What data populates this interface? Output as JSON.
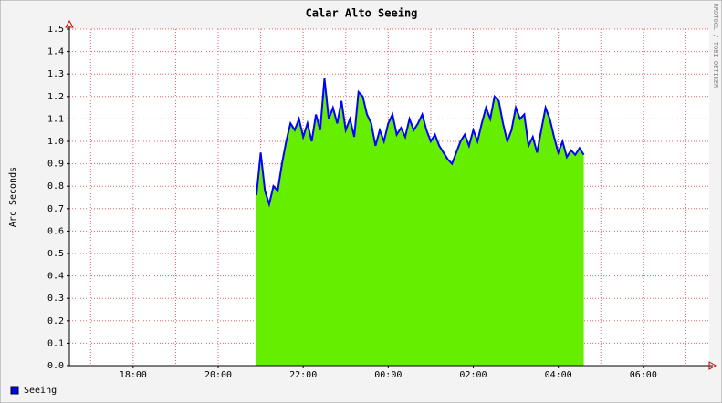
{
  "chart_data": {
    "type": "area",
    "title": "Calar Alto Seeing",
    "ylabel": "Arc Seconds",
    "side_text": "RRDTOOL / TOBI OETIKER",
    "xlim": [
      16.5,
      31.55
    ],
    "xticks": [
      {
        "value": 18,
        "label": "18:00"
      },
      {
        "value": 20,
        "label": "20:00"
      },
      {
        "value": 22,
        "label": "22:00"
      },
      {
        "value": 24,
        "label": "00:00"
      },
      {
        "value": 26,
        "label": "02:00"
      },
      {
        "value": 28,
        "label": "04:00"
      },
      {
        "value": 30,
        "label": "06:00"
      }
    ],
    "xgrid": [
      17,
      18,
      19,
      20,
      21,
      22,
      23,
      24,
      25,
      26,
      27,
      28,
      29,
      30,
      31
    ],
    "ylim": [
      0,
      1.5
    ],
    "yticks": [
      {
        "value": 0,
        "label": "0.0"
      },
      0.1,
      0.2,
      0.3,
      0.4,
      0.5,
      0.6,
      0.7,
      0.8,
      0.9,
      {
        "value": 1,
        "label": "1.0"
      },
      1.1,
      1.2,
      1.3,
      1.4,
      {
        "value": 1.5,
        "label": "1.5"
      }
    ],
    "grid": true,
    "x": [
      20.9,
      21.0,
      21.1,
      21.2,
      21.3,
      21.4,
      21.5,
      21.6,
      21.7,
      21.8,
      21.9,
      22.0,
      22.1,
      22.2,
      22.3,
      22.4,
      22.5,
      22.6,
      22.7,
      22.8,
      22.9,
      23.0,
      23.1,
      23.2,
      23.3,
      23.4,
      23.5,
      23.6,
      23.7,
      23.8,
      23.9,
      24.0,
      24.1,
      24.2,
      24.3,
      24.4,
      24.5,
      24.6,
      24.7,
      24.8,
      24.9,
      25.0,
      25.1,
      25.2,
      25.3,
      25.4,
      25.5,
      25.6,
      25.7,
      25.8,
      25.9,
      26.0,
      26.1,
      26.2,
      26.3,
      26.4,
      26.5,
      26.6,
      26.7,
      26.8,
      26.9,
      27.0,
      27.1,
      27.2,
      27.3,
      27.4,
      27.5,
      27.6,
      27.7,
      27.8,
      27.9,
      28.0,
      28.1,
      28.2,
      28.3,
      28.4,
      28.5,
      28.6
    ],
    "series": [
      {
        "name": "Seeing",
        "color": "#0000ff",
        "fill": "#66ee00",
        "values": [
          0.76,
          0.95,
          0.78,
          0.72,
          0.8,
          0.78,
          0.9,
          1.0,
          1.08,
          1.05,
          1.1,
          1.02,
          1.08,
          1.0,
          1.12,
          1.05,
          1.28,
          1.1,
          1.15,
          1.08,
          1.18,
          1.05,
          1.1,
          1.02,
          1.22,
          1.2,
          1.12,
          1.08,
          0.98,
          1.05,
          1.0,
          1.08,
          1.12,
          1.03,
          1.06,
          1.02,
          1.1,
          1.05,
          1.08,
          1.12,
          1.05,
          1.0,
          1.03,
          0.98,
          0.95,
          0.92,
          0.9,
          0.95,
          1.0,
          1.03,
          0.98,
          1.05,
          1.0,
          1.08,
          1.15,
          1.1,
          1.2,
          1.18,
          1.08,
          1.0,
          1.05,
          1.15,
          1.1,
          1.12,
          0.98,
          1.02,
          0.95,
          1.05,
          1.15,
          1.1,
          1.02,
          0.95,
          1.0,
          0.93,
          0.96,
          0.94,
          0.97,
          0.94
        ]
      }
    ]
  }
}
